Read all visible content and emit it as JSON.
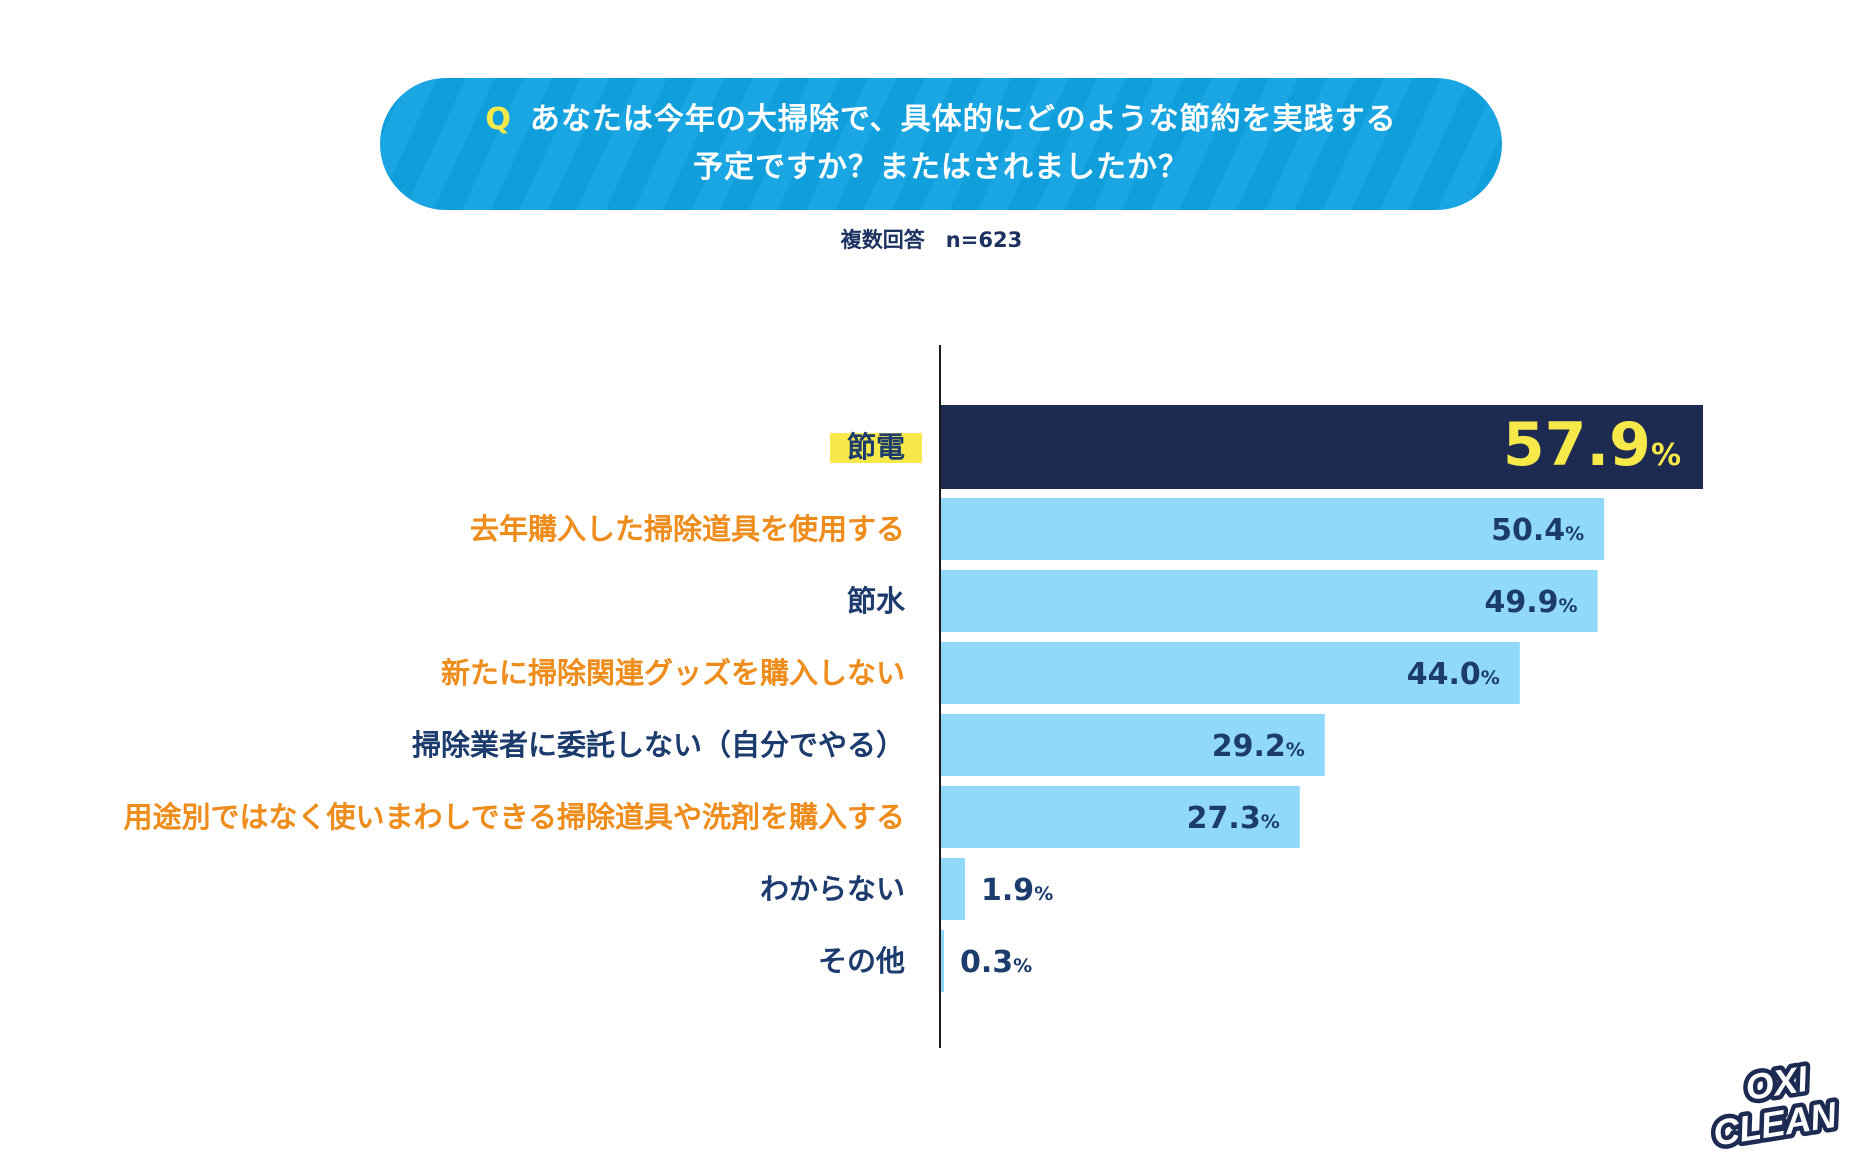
{
  "header": {
    "q_mark": "Q",
    "question_line1": "あなたは今年の大掃除で、具体的にどのような節約を実践する",
    "question_line2": "予定ですか？またはされましたか？",
    "note": "複数回答　n=623"
  },
  "brand": {
    "logo_text_1": "OXI",
    "logo_text_2": "CLEAN"
  },
  "colors": {
    "top_bar": "#1d2b53",
    "bar": "#91d9fb",
    "label_blue": "#1c3c6e",
    "label_orange": "#ee8c1c",
    "highlight_yellow": "#f7e94a",
    "value_dark": "#1c3c6e",
    "axis": "#1a1a1a"
  },
  "chart_data": {
    "type": "bar",
    "orientation": "horizontal",
    "unit": "%",
    "categories": [
      "節電",
      "去年購入した掃除道具を使用する",
      "節水",
      "新たに掃除関連グッズを購入しない",
      "掃除業者に委託しない（自分でやる）",
      "用途別ではなく使いまわしできる掃除道具や洗剤を購入する",
      "わからない",
      "その他"
    ],
    "values": [
      57.9,
      50.4,
      49.9,
      44.0,
      29.2,
      27.3,
      1.9,
      0.3
    ],
    "value_labels": [
      "57.9",
      "50.4",
      "49.9",
      "44.0",
      "29.2",
      "27.3",
      "1.9",
      "0.3"
    ],
    "label_colors": [
      "blue",
      "orange",
      "blue",
      "orange",
      "blue",
      "orange",
      "blue",
      "blue"
    ],
    "highlighted": [
      0
    ],
    "xlim": [
      0,
      57.9
    ],
    "grid": false,
    "legend": "none"
  }
}
